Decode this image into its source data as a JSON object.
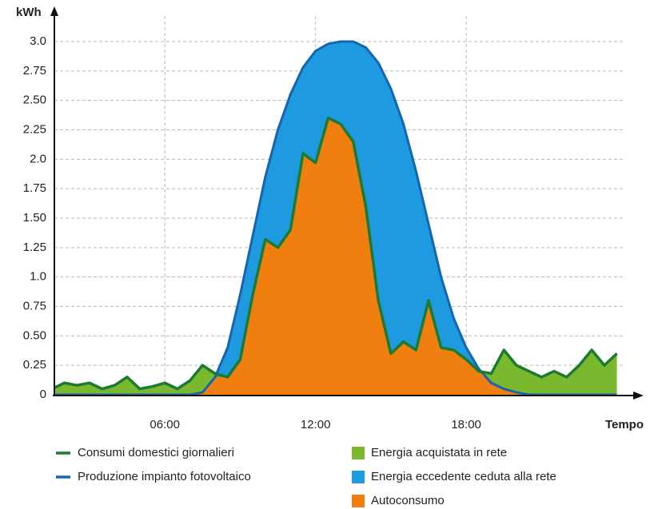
{
  "chart_data": {
    "type": "energy-area",
    "y_label": "kWh",
    "x_label": "Tempo",
    "x": [
      1.5,
      2,
      2.5,
      3,
      3.5,
      4,
      4.5,
      5,
      5.5,
      6,
      6.5,
      7,
      7.5,
      8,
      8.5,
      9,
      9.5,
      10,
      10.5,
      11,
      11.5,
      12,
      12.5,
      13,
      13.5,
      14,
      14.5,
      15,
      15.5,
      16,
      16.5,
      17,
      17.5,
      18,
      18.5,
      19,
      19.5,
      20,
      20.5,
      21,
      21.5,
      22,
      22.5,
      23,
      23.5,
      24
    ],
    "series": [
      {
        "name": "Consumi domestici giornalieri",
        "color": "#1d7a31",
        "values": [
          0.05,
          0.1,
          0.08,
          0.1,
          0.05,
          0.08,
          0.15,
          0.05,
          0.07,
          0.1,
          0.05,
          0.12,
          0.25,
          0.18,
          0.15,
          0.3,
          0.85,
          1.32,
          1.25,
          1.4,
          2.05,
          1.97,
          2.35,
          2.3,
          2.15,
          1.6,
          0.8,
          0.35,
          0.45,
          0.38,
          0.8,
          0.4,
          0.38,
          0.3,
          0.2,
          0.18,
          0.38,
          0.25,
          0.2,
          0.15,
          0.2,
          0.15,
          0.25,
          0.38,
          0.25,
          0.35
        ]
      },
      {
        "name": "Produzione impianto fotovoltaico",
        "color": "#1565b0",
        "values": [
          0,
          0,
          0,
          0,
          0,
          0,
          0,
          0,
          0,
          0,
          0,
          0,
          0.02,
          0.15,
          0.4,
          0.85,
          1.35,
          1.85,
          2.25,
          2.55,
          2.78,
          2.92,
          2.98,
          3.0,
          3.0,
          2.95,
          2.82,
          2.6,
          2.3,
          1.9,
          1.45,
          1.0,
          0.65,
          0.4,
          0.22,
          0.1,
          0.05,
          0.02,
          0,
          0,
          0,
          0,
          0,
          0,
          0,
          0
        ]
      }
    ],
    "areas": [
      {
        "name": "Energia acquistata in rete",
        "color": "#7ab82e"
      },
      {
        "name": "Energia eccedente ceduta alla rete",
        "color": "#1e9be0"
      },
      {
        "name": "Autoconsumo",
        "color": "#f07f0f"
      }
    ],
    "xlim": [
      1.6,
      24.3
    ],
    "xticks": [
      {
        "value": 6,
        "label": "06:00"
      },
      {
        "value": 12,
        "label": "12:00"
      },
      {
        "value": 18,
        "label": "18:00"
      }
    ],
    "ylim": [
      0,
      3.0
    ],
    "yticks": [
      0,
      0.25,
      {
        "value": 0.5,
        "label": "0.50"
      },
      0.75,
      {
        "value": 1.0,
        "label": "1.0"
      },
      1.25,
      {
        "value": 1.5,
        "label": "1.50"
      },
      1.75,
      {
        "value": 2.0,
        "label": "2.0"
      },
      2.25,
      {
        "value": 2.5,
        "label": "2.50"
      },
      2.75,
      {
        "value": 3.0,
        "label": "3.0"
      }
    ],
    "grid": true
  }
}
